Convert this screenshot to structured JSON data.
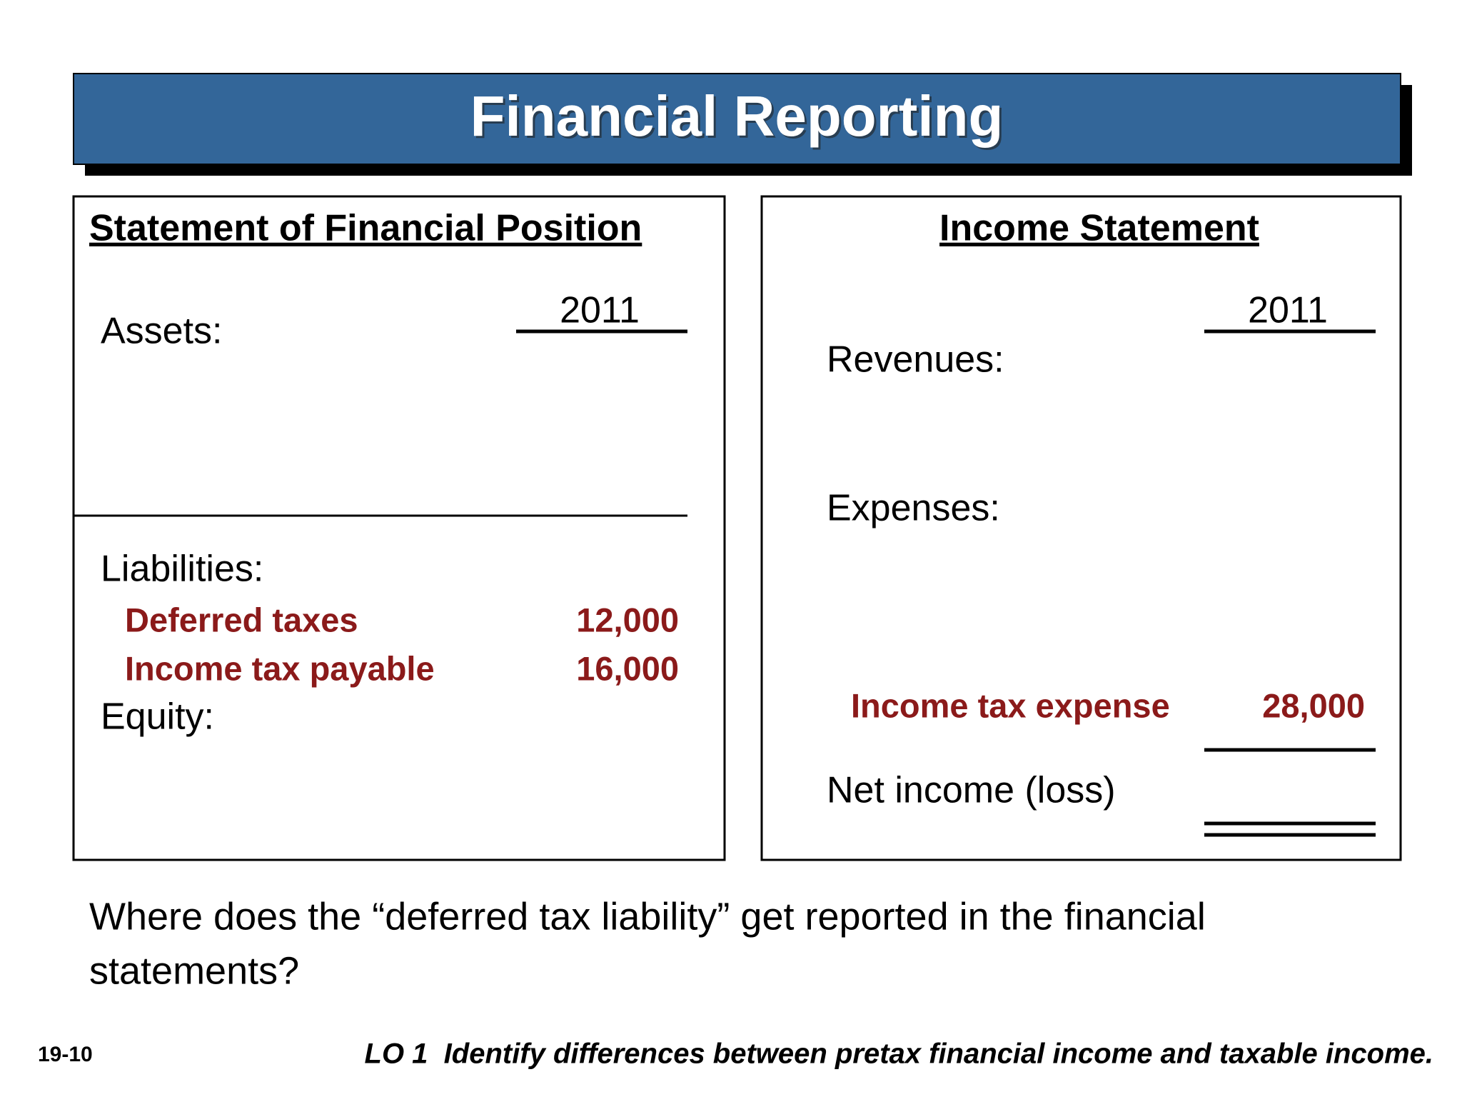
{
  "header": {
    "title": "Financial Reporting"
  },
  "left_panel": {
    "heading": "Statement of Financial Position",
    "year": "2011",
    "assets_label": "Assets:",
    "liabilities_label": "Liabilities:",
    "items": [
      {
        "label": "Deferred taxes",
        "amount": "12,000"
      },
      {
        "label": "Income tax payable",
        "amount": "16,000"
      }
    ],
    "equity_label": "Equity:"
  },
  "right_panel": {
    "heading": "Income Statement",
    "year": "2011",
    "revenues_label": "Revenues:",
    "expenses_label": "Expenses:",
    "items": [
      {
        "label": "Income tax expense",
        "amount": "28,000"
      }
    ],
    "net_income_label": "Net income (loss)"
  },
  "question": {
    "lines": [
      "Where does the “deferred tax liability” get reported in the financial",
      "statements?"
    ]
  },
  "footer": {
    "slide_number": "19-10",
    "objective": "LO 1  Identify differences between pretax financial income and taxable income."
  }
}
